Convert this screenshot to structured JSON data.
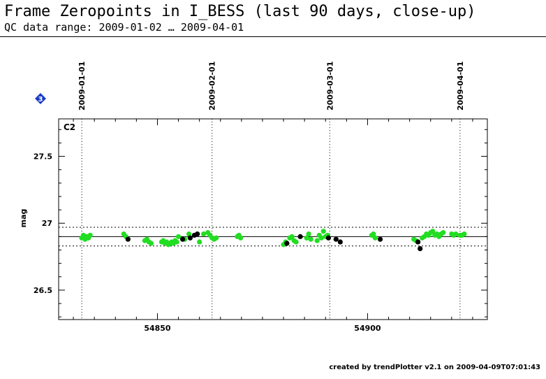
{
  "header": {
    "title": "Frame Zeropoints in I_BESS (last 90 days, close-up)",
    "subtitle": "QC data range: 2009-01-02 … 2009-04-01"
  },
  "footer": {
    "text": "created by trendPlotter v2.1 on 2009-04-09T07:01:43"
  },
  "badge": {
    "label": "3",
    "color": "#1a3cc8"
  },
  "chart_data": {
    "type": "scatter",
    "panel_label": "C2",
    "xlabel": "",
    "ylabel": "mag",
    "xlim": [
      54826.5,
      54928.5
    ],
    "ylim": [
      26.28,
      27.78
    ],
    "x_ticks": [
      54850,
      54900
    ],
    "y_ticks": [
      26.5,
      27,
      27.5
    ],
    "y_tick_labels": [
      "26.5",
      "27",
      "27.5"
    ],
    "reference_line": 26.9,
    "threshold_lines": [
      26.83,
      26.97
    ],
    "date_markers": [
      {
        "mjd": 54832,
        "label": "2009-01-01"
      },
      {
        "mjd": 54863,
        "label": "2009-02-01"
      },
      {
        "mjd": 54891,
        "label": "2009-03-01"
      },
      {
        "mjd": 54922,
        "label": "2009-04-01"
      }
    ],
    "colors": {
      "good": "#22dd22",
      "flagged": "#000000"
    },
    "series": [
      {
        "key": "good",
        "points": [
          [
            54832.0,
            26.89
          ],
          [
            54832.4,
            26.91
          ],
          [
            54832.8,
            26.88
          ],
          [
            54833.2,
            26.9
          ],
          [
            54833.6,
            26.89
          ],
          [
            54834.0,
            26.91
          ],
          [
            54842.0,
            26.92
          ],
          [
            54842.5,
            26.9
          ],
          [
            54847.0,
            26.87
          ],
          [
            54847.5,
            26.88
          ],
          [
            54848.0,
            26.86
          ],
          [
            54848.5,
            26.85
          ],
          [
            54851.0,
            26.86
          ],
          [
            54851.4,
            26.87
          ],
          [
            54851.8,
            26.85
          ],
          [
            54852.2,
            26.86
          ],
          [
            54852.6,
            26.84
          ],
          [
            54853.0,
            26.85
          ],
          [
            54853.4,
            26.86
          ],
          [
            54853.8,
            26.85
          ],
          [
            54854.2,
            26.87
          ],
          [
            54854.6,
            26.86
          ],
          [
            54855.0,
            26.9
          ],
          [
            54856.5,
            26.88
          ],
          [
            54857.5,
            26.92
          ],
          [
            54860.0,
            26.86
          ],
          [
            54861.0,
            26.92
          ],
          [
            54862.0,
            26.93
          ],
          [
            54862.5,
            26.91
          ],
          [
            54863.0,
            26.89
          ],
          [
            54863.5,
            26.88
          ],
          [
            54864.0,
            26.89
          ],
          [
            54869.0,
            26.9
          ],
          [
            54869.4,
            26.91
          ],
          [
            54869.8,
            26.89
          ],
          [
            54880.0,
            26.84
          ],
          [
            54880.5,
            26.86
          ],
          [
            54881.5,
            26.89
          ],
          [
            54882.0,
            26.9
          ],
          [
            54882.5,
            26.87
          ],
          [
            54883.0,
            26.86
          ],
          [
            54885.5,
            26.89
          ],
          [
            54886.0,
            26.92
          ],
          [
            54886.5,
            26.88
          ],
          [
            54888.0,
            26.87
          ],
          [
            54888.5,
            26.91
          ],
          [
            54889.0,
            26.89
          ],
          [
            54889.5,
            26.94
          ],
          [
            54890.0,
            26.9
          ],
          [
            54890.5,
            26.91
          ],
          [
            54901.0,
            26.91
          ],
          [
            54901.4,
            26.92
          ],
          [
            54901.8,
            26.89
          ],
          [
            54911.0,
            26.88
          ],
          [
            54911.5,
            26.87
          ],
          [
            54913.0,
            26.89
          ],
          [
            54913.5,
            26.9
          ],
          [
            54914.0,
            26.92
          ],
          [
            54914.5,
            26.91
          ],
          [
            54915.0,
            26.93
          ],
          [
            54915.5,
            26.94
          ],
          [
            54916.0,
            26.91
          ],
          [
            54916.5,
            26.92
          ],
          [
            54917.0,
            26.9
          ],
          [
            54917.5,
            26.92
          ],
          [
            54918.0,
            26.93
          ],
          [
            54920.0,
            26.92
          ],
          [
            54920.5,
            26.91
          ],
          [
            54921.0,
            26.92
          ],
          [
            54922.0,
            26.91
          ],
          [
            54922.5,
            26.91
          ],
          [
            54923.0,
            26.92
          ]
        ]
      },
      {
        "key": "flagged",
        "points": [
          [
            54843.0,
            26.88
          ],
          [
            54856.0,
            26.88
          ],
          [
            54857.8,
            26.89
          ],
          [
            54858.8,
            26.91
          ],
          [
            54859.5,
            26.92
          ],
          [
            54880.8,
            26.85
          ],
          [
            54884.0,
            26.9
          ],
          [
            54890.7,
            26.89
          ],
          [
            54892.5,
            26.88
          ],
          [
            54893.5,
            26.86
          ],
          [
            54903.0,
            26.88
          ],
          [
            54912.0,
            26.86
          ],
          [
            54912.5,
            26.81
          ]
        ]
      }
    ]
  }
}
